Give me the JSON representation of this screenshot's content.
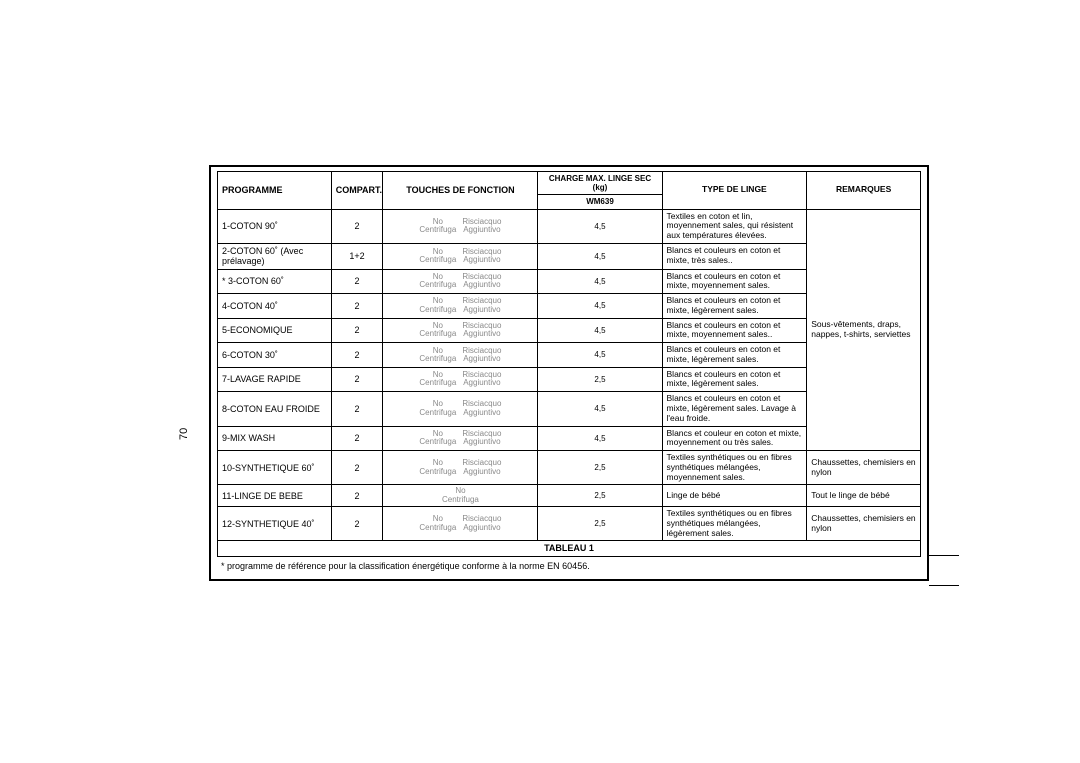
{
  "page_number": "70",
  "headers": {
    "programme": "PROGRAMME",
    "compart": "COMPART.",
    "touches": "TOUCHES DE FONCTION",
    "charge_line1": "CHARGE MAX. LINGE SEC (kg)",
    "charge_line2": "WM639",
    "type": "TYPE DE LINGE",
    "remarques": "REMARQUES"
  },
  "touches_labels": {
    "no": "No",
    "centrifuga": "Centrifuga",
    "risciacquo": "Risciacquo",
    "aggiuntivo": "Aggiuntivo"
  },
  "rows": [
    {
      "programme": "1-COTON 90˚",
      "compart": "2",
      "touches": "both",
      "charge": "4,5",
      "type": "Textiles en coton et lin, moyennement sales, qui résistent aux températures élevées."
    },
    {
      "programme": "2-COTON 60˚ (Avec prélavage)",
      "compart": "1+2",
      "touches": "both",
      "charge": "4,5",
      "type": "Blancs et couleurs en coton et mixte, très sales.."
    },
    {
      "programme": "* 3-COTON 60˚",
      "compart": "2",
      "touches": "both",
      "charge": "4,5",
      "type": "Blancs et couleurs en coton et mixte, moyennement sales."
    },
    {
      "programme": "4-COTON 40˚",
      "compart": "2",
      "touches": "both",
      "charge": "4,5",
      "type": "Blancs et couleurs en coton et mixte, légèrement sales."
    },
    {
      "programme": "5-ECONOMIQUE",
      "compart": "2",
      "touches": "both",
      "charge": "4,5",
      "type": "Blancs et couleurs en coton et mixte, moyennement sales.."
    },
    {
      "programme": "6-COTON 30˚",
      "compart": "2",
      "touches": "both",
      "charge": "4,5",
      "type": "Blancs et couleurs en coton et mixte, légèrement sales."
    },
    {
      "programme": "7-LAVAGE RAPIDE",
      "compart": "2",
      "touches": "both",
      "charge": "2,5",
      "type": "Blancs et couleurs en coton et mixte, légèrement sales."
    },
    {
      "programme": "8-COTON EAU FROIDE",
      "compart": "2",
      "touches": "both",
      "charge": "4,5",
      "type": "Blancs et couleurs en coton et mixte, légèrement sales. Lavage à l'eau froide."
    },
    {
      "programme": "9-MIX WASH",
      "compart": "2",
      "touches": "both",
      "charge": "4,5",
      "type": "Blancs et couleur en coton et mixte, moyennement ou très sales."
    }
  ],
  "rows2": [
    {
      "programme": "10-SYNTHETIQUE 60˚",
      "compart": "2",
      "touches": "both",
      "charge": "2,5",
      "type": "Textiles synthétiques ou en fibres synthétiques mélangées, moyennement sales.",
      "remarques": "Chaussettes, chemisiers en nylon"
    },
    {
      "programme": "11-LINGE DE BEBE",
      "compart": "2",
      "touches": "no_only",
      "charge": "2,5",
      "type": "Linge de bébé",
      "remarques": "Tout le linge de bébé"
    },
    {
      "programme": "12-SYNTHETIQUE 40˚",
      "compart": "2",
      "touches": "both",
      "charge": "2,5",
      "type": "Textiles synthétiques ou en fibres synthétiques mélangées, légèrement sales.",
      "remarques": "Chaussettes, chemisiers en nylon"
    }
  ],
  "remarques_group1": "Sous-vêtements, draps, nappes, t-shirts, serviettes",
  "tableau_label": "TABLEAU 1",
  "footnote": "* programme de référence pour la classification énergétique conforme à la norme EN 60456.",
  "colors": {
    "border": "#000000",
    "background": "#ffffff",
    "faded_text": "#8a8a8a"
  }
}
